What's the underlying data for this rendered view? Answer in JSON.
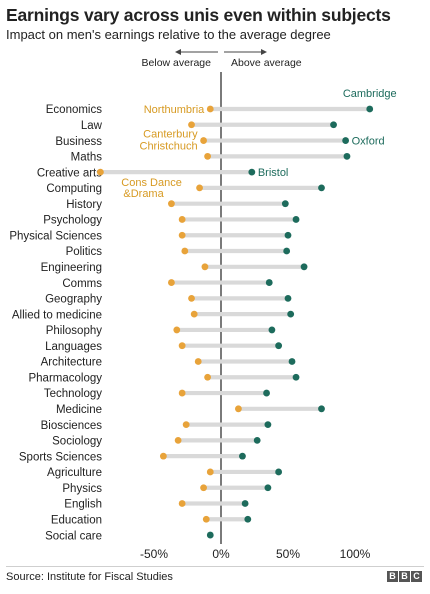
{
  "title": "Earnings vary across unis even within subjects",
  "subtitle": "Impact on men's earnings relative to the average degree",
  "source": "Source: Institute for Fiscal Studies",
  "logo": [
    "B",
    "B",
    "C"
  ],
  "colors": {
    "low": "#e8a33a",
    "high": "#1d6b5c",
    "bar": "#d9d9d9",
    "zero": "#333333",
    "low_text": "#d79a22"
  },
  "chart_data": {
    "type": "dumbbell",
    "direction_labels": {
      "left": "Below average",
      "right": "Above average"
    },
    "xlim": [
      -70,
      150
    ],
    "xticks": [
      {
        "value": -50,
        "label": "-50%"
      },
      {
        "value": 0,
        "label": "0%"
      },
      {
        "value": 50,
        "label": "50%"
      },
      {
        "value": 100,
        "label": "100%"
      }
    ],
    "subjects": [
      {
        "name": "Economics",
        "low": -8,
        "high": 111
      },
      {
        "name": "Law",
        "low": -22,
        "high": 84
      },
      {
        "name": "Business",
        "low": -13,
        "high": 93
      },
      {
        "name": "Maths",
        "low": -10,
        "high": 94
      },
      {
        "name": "Creative arts",
        "low": -90,
        "high": 23
      },
      {
        "name": "Computing",
        "low": -16,
        "high": 75
      },
      {
        "name": "History",
        "low": -37,
        "high": 48
      },
      {
        "name": "Psychology",
        "low": -29,
        "high": 56
      },
      {
        "name": "Physical Sciences",
        "low": -29,
        "high": 50
      },
      {
        "name": "Politics",
        "low": -27,
        "high": 49
      },
      {
        "name": "Engineering",
        "low": -12,
        "high": 62
      },
      {
        "name": "Comms",
        "low": -37,
        "high": 36
      },
      {
        "name": "Geography",
        "low": -22,
        "high": 50
      },
      {
        "name": "Allied to medicine",
        "low": -20,
        "high": 52
      },
      {
        "name": "Philosophy",
        "low": -33,
        "high": 38
      },
      {
        "name": "Languages",
        "low": -29,
        "high": 43
      },
      {
        "name": "Architecture",
        "low": -17,
        "high": 53
      },
      {
        "name": "Pharmacology",
        "low": -10,
        "high": 56
      },
      {
        "name": "Technology",
        "low": -29,
        "high": 34
      },
      {
        "name": "Medicine",
        "low": 13,
        "high": 75
      },
      {
        "name": "Biosciences",
        "low": -26,
        "high": 35
      },
      {
        "name": "Sociology",
        "low": -32,
        "high": 27
      },
      {
        "name": "Sports Sciences",
        "low": -43,
        "high": 16
      },
      {
        "name": "Agriculture",
        "low": -8,
        "high": 43
      },
      {
        "name": "Physics",
        "low": -13,
        "high": 35
      },
      {
        "name": "English",
        "low": -29,
        "high": 18
      },
      {
        "name": "Education",
        "low": -11,
        "high": 20
      },
      {
        "name": "Social care",
        "low": null,
        "high": -8
      }
    ],
    "annotations": [
      {
        "text": "Cambridge",
        "row": 0,
        "series": "high",
        "pos": "above"
      },
      {
        "text": "Northumbria",
        "row": 0,
        "series": "low",
        "pos": "left"
      },
      {
        "text": "Oxford",
        "row": 2,
        "series": "high",
        "pos": "right"
      },
      {
        "text": "Canterbury",
        "row": 2,
        "series": "low",
        "pos": "left-up"
      },
      {
        "text": "Christchuch",
        "row": 2,
        "series": "low",
        "pos": "left-down"
      },
      {
        "text": "Bristol",
        "row": 4,
        "series": "high",
        "pos": "right"
      },
      {
        "text": "Cons Dance",
        "row": 5,
        "series": "low",
        "pos": "below-1"
      },
      {
        "text": "&Drama",
        "row": 5,
        "series": "low",
        "pos": "below-2"
      }
    ]
  }
}
